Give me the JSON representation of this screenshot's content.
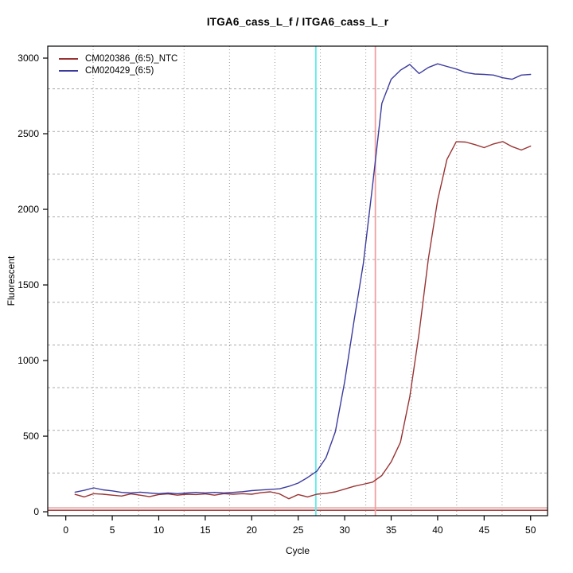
{
  "title": "ITGA6_cass_L_f / ITGA6_cass_L_r",
  "chart_data": {
    "type": "line",
    "title": "ITGA6_cass_L_f / ITGA6_cass_L_r",
    "xlabel": "Cycle",
    "ylabel": "Fluorescent",
    "xlim": [
      -1.94,
      51.82
    ],
    "ylim": [
      -26,
      3079
    ],
    "x_ticks": [
      0,
      5,
      10,
      15,
      20,
      25,
      30,
      35,
      40,
      45,
      50
    ],
    "y_ticks": [
      0,
      500,
      1000,
      1500,
      2000,
      2500,
      3000
    ],
    "grid": {
      "nx": 11,
      "ny": 11,
      "color_v": "#999999",
      "color_h": "#aaaaaa",
      "style": "dotted"
    },
    "x_start": 1,
    "series": [
      {
        "name": "CM020386_(6:5)_NTC",
        "color": "#993333",
        "values": [
          115,
          98,
          120,
          116,
          110,
          104,
          118,
          110,
          100,
          114,
          118,
          110,
          116,
          114,
          118,
          110,
          120,
          116,
          120,
          116,
          126,
          132,
          118,
          86,
          114,
          98,
          116,
          122,
          132,
          150,
          168,
          182,
          196,
          240,
          330,
          460,
          760,
          1180,
          1670,
          2060,
          2330,
          2447,
          2445,
          2428,
          2408,
          2432,
          2448,
          2415,
          2392,
          2418
        ]
      },
      {
        "name": "CM020429_(6:5)",
        "color": "#3b3b9e",
        "values": [
          130,
          142,
          158,
          145,
          138,
          128,
          124,
          130,
          124,
          120,
          124,
          120,
          124,
          128,
          124,
          128,
          124,
          128,
          133,
          140,
          144,
          148,
          152,
          168,
          190,
          226,
          268,
          358,
          530,
          860,
          1260,
          1640,
          2160,
          2700,
          2860,
          2920,
          2958,
          2898,
          2938,
          2962,
          2945,
          2928,
          2905,
          2895,
          2892,
          2888,
          2870,
          2860,
          2888,
          2892
        ]
      }
    ],
    "baseline_lines": [
      {
        "y": 26,
        "color": "#e2a0a0"
      },
      {
        "y": 10,
        "color": "#a84444"
      }
    ],
    "marker_vlines": [
      {
        "x": 26.9,
        "color": "#5feded"
      },
      {
        "x": 33.3,
        "color": "#f0a0a0"
      }
    ],
    "legend": {
      "position": "top-left",
      "entries": [
        {
          "label": "CM020386_(6:5)_NTC",
          "color": "#993333"
        },
        {
          "label": "CM020429_(6:5)",
          "color": "#3b3b9e"
        }
      ]
    }
  }
}
